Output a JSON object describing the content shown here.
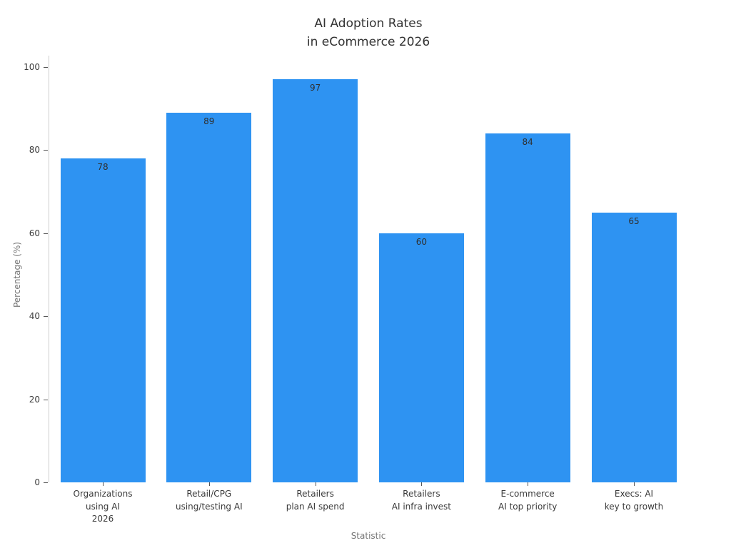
{
  "title": "AI Adoption Rates\nin eCommerce 2026",
  "chart_data": {
    "type": "bar",
    "categories": [
      "Organizations\nusing AI\n2026",
      "Retail/CPG\nusing/testing AI",
      "Retailers\nplan AI spend",
      "Retailers\nAI infra invest",
      "E-commerce\nAI top priority",
      "Execs: AI\nkey to growth"
    ],
    "values": [
      78,
      89,
      97,
      60,
      84,
      65
    ],
    "value_labels": [
      "78",
      "89",
      "97",
      "60",
      "84",
      "65"
    ],
    "title": "AI Adoption Rates\nin eCommerce 2026",
    "xlabel": "Statistic",
    "ylabel": "Percentage (%)",
    "ylim": [
      0,
      100
    ],
    "yticks": [
      0,
      20,
      40,
      60,
      80,
      100
    ],
    "grid": false,
    "legend_position": "none"
  },
  "colors": {
    "bar_fill": "#2e93f2",
    "background": "#ffffff",
    "title_text": "#333333",
    "tick_text": "#3a3a3a",
    "axis_label_text": "#757575",
    "spine": "#cccccc",
    "tick_mark": "#555555",
    "value_label_text": "#2f2f2f"
  }
}
